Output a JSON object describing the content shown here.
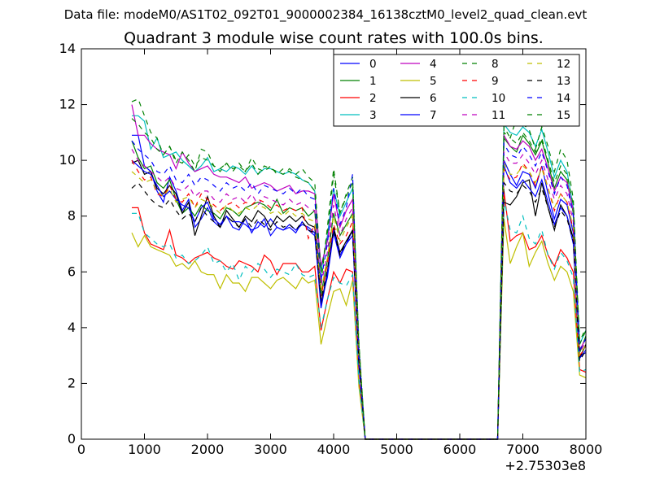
{
  "figure": {
    "suptitle": "Data file: modeM0/AS1T02_092T01_9000002384_16138cztM0_level2_quad_clean.evt",
    "x_offset_label": "+2.75303e8"
  },
  "chart_data": {
    "type": "line",
    "title": "Quadrant 3 module wise count rates with 100.0s bins.",
    "xlabel": "",
    "ylabel": "",
    "xlim": [
      0,
      8000
    ],
    "ylim": [
      0,
      14
    ],
    "x_offset": 275303000,
    "x_ticks": [
      0,
      1000,
      2000,
      3000,
      4000,
      5000,
      6000,
      7000,
      8000
    ],
    "y_ticks": [
      0,
      2,
      4,
      6,
      8,
      10,
      12,
      14
    ],
    "legend_position": "top-right",
    "legend_columns": 4,
    "grid": false,
    "x": [
      800,
      900,
      1000,
      1100,
      1200,
      1300,
      1400,
      1500,
      1600,
      1700,
      1800,
      1900,
      2000,
      2100,
      2200,
      2300,
      2400,
      2500,
      2600,
      2700,
      2800,
      2900,
      3000,
      3100,
      3200,
      3300,
      3400,
      3500,
      3600,
      3700,
      3800,
      3900,
      4000,
      4100,
      4200,
      4300,
      4400,
      4500,
      6600,
      6700,
      6800,
      6900,
      7000,
      7100,
      7200,
      7300,
      7400,
      7500,
      7600,
      7700,
      7800,
      7900,
      8000
    ],
    "series": [
      {
        "name": "0",
        "color": "#0000ff",
        "dash": "solid",
        "values": [
          10.9,
          10.9,
          9.8,
          9.6,
          8.9,
          8.5,
          9.4,
          8.9,
          8.2,
          8.6,
          7.6,
          7.9,
          8.3,
          7.8,
          7.6,
          8.0,
          7.6,
          7.5,
          7.9,
          7.4,
          7.8,
          7.6,
          7.9,
          7.6,
          7.5,
          7.6,
          7.4,
          7.8,
          7.5,
          7.3,
          4.9,
          5.8,
          7.4,
          6.5,
          7.0,
          7.5,
          2.7,
          0.0,
          0.0,
          10.0,
          9.5,
          9.1,
          9.6,
          9.5,
          9.0,
          9.8,
          8.8,
          7.9,
          8.6,
          8.4,
          7.4,
          3.0,
          3.1
        ]
      },
      {
        "name": "1",
        "color": "#008000",
        "dash": "solid",
        "values": [
          10.7,
          10.1,
          9.7,
          9.8,
          9.2,
          9.0,
          9.3,
          8.6,
          8.1,
          8.3,
          8.0,
          8.4,
          8.2,
          8.1,
          7.9,
          8.3,
          8.2,
          8.0,
          8.3,
          8.4,
          8.5,
          8.4,
          8.2,
          8.6,
          8.1,
          8.3,
          8.2,
          8.3,
          8.0,
          8.2,
          5.2,
          6.4,
          8.1,
          7.3,
          7.7,
          8.1,
          2.9,
          0.0,
          0.0,
          10.8,
          10.5,
          10.3,
          10.9,
          10.6,
          10.2,
          10.7,
          9.9,
          9.0,
          9.6,
          9.3,
          8.1,
          3.1,
          3.7
        ]
      },
      {
        "name": "2",
        "color": "#ff0000",
        "dash": "solid",
        "values": [
          8.3,
          8.3,
          7.4,
          7.0,
          6.9,
          6.8,
          7.5,
          6.6,
          6.5,
          6.3,
          6.5,
          6.6,
          6.7,
          6.5,
          6.4,
          6.2,
          6.1,
          6.4,
          6.3,
          6.2,
          6.0,
          6.6,
          6.4,
          5.9,
          6.3,
          6.3,
          6.3,
          6.0,
          6.0,
          6.2,
          3.9,
          5.0,
          6.0,
          5.6,
          6.1,
          6.0,
          2.1,
          0.0,
          0.0,
          8.9,
          7.1,
          7.3,
          7.4,
          6.8,
          6.9,
          7.3,
          6.6,
          6.2,
          6.8,
          6.5,
          6.0,
          2.5,
          2.4
        ]
      },
      {
        "name": "3",
        "color": "#00bfbf",
        "dash": "solid",
        "values": [
          11.6,
          11.6,
          11.4,
          10.4,
          10.8,
          10.1,
          10.2,
          10.3,
          10.0,
          9.8,
          9.6,
          9.8,
          10.1,
          9.6,
          9.7,
          9.6,
          9.8,
          9.7,
          9.5,
          9.8,
          9.5,
          9.7,
          9.7,
          9.6,
          9.5,
          9.6,
          9.5,
          9.3,
          9.2,
          8.9,
          6.0,
          7.3,
          9.0,
          8.0,
          8.5,
          9.0,
          3.2,
          0.0,
          0.0,
          11.3,
          11.0,
          10.9,
          11.2,
          11.0,
          10.5,
          11.1,
          10.3,
          9.4,
          10.0,
          9.6,
          8.3,
          3.4,
          3.9
        ]
      },
      {
        "name": "4",
        "color": "#bf00bf",
        "dash": "solid",
        "values": [
          12.0,
          10.9,
          10.9,
          10.6,
          10.4,
          10.3,
          10.2,
          9.7,
          10.3,
          9.9,
          9.6,
          9.7,
          9.8,
          9.5,
          9.4,
          9.4,
          9.3,
          9.2,
          9.4,
          9.0,
          9.1,
          9.2,
          9.1,
          8.9,
          9.0,
          9.1,
          8.8,
          8.9,
          8.9,
          8.8,
          6.2,
          7.1,
          8.8,
          7.6,
          8.2,
          8.6,
          3.0,
          0.0,
          0.0,
          10.9,
          10.5,
          10.4,
          10.7,
          10.5,
          10.0,
          10.4,
          9.7,
          8.9,
          9.4,
          9.2,
          8.2,
          3.2,
          3.6
        ]
      },
      {
        "name": "5",
        "color": "#bfbf00",
        "dash": "solid",
        "values": [
          7.4,
          6.9,
          7.3,
          6.9,
          6.8,
          6.7,
          6.6,
          6.2,
          6.3,
          6.1,
          6.4,
          6.0,
          5.9,
          5.9,
          5.4,
          5.9,
          5.6,
          5.6,
          5.3,
          5.8,
          5.8,
          5.6,
          5.4,
          5.7,
          5.8,
          5.6,
          5.4,
          5.8,
          5.6,
          5.7,
          3.4,
          4.4,
          5.3,
          5.4,
          4.8,
          5.7,
          1.9,
          0.0,
          0.0,
          7.9,
          6.3,
          6.9,
          7.4,
          6.2,
          6.7,
          7.1,
          6.3,
          5.7,
          6.2,
          6.0,
          5.3,
          2.3,
          2.2
        ]
      },
      {
        "name": "6",
        "color": "#000000",
        "dash": "solid",
        "values": [
          9.9,
          10.0,
          9.5,
          9.6,
          9.0,
          8.8,
          9.1,
          8.8,
          8.1,
          8.5,
          7.3,
          8.0,
          8.7,
          8.0,
          7.6,
          8.2,
          7.9,
          7.6,
          8.0,
          7.8,
          8.2,
          8.0,
          7.6,
          8.0,
          7.8,
          8.0,
          7.8,
          8.0,
          7.7,
          7.6,
          4.8,
          6.0,
          7.6,
          6.7,
          7.1,
          7.5,
          2.8,
          0.0,
          0.0,
          8.5,
          8.4,
          8.7,
          9.2,
          9.3,
          8.0,
          9.2,
          8.3,
          7.5,
          8.4,
          8.0,
          7.2,
          2.9,
          3.4
        ]
      },
      {
        "name": "7",
        "color": "#0000ff",
        "dash": "solid",
        "values": [
          10.0,
          9.8,
          9.6,
          9.5,
          9.1,
          8.7,
          8.9,
          8.6,
          8.4,
          8.3,
          7.8,
          8.3,
          8.5,
          7.9,
          7.7,
          8.0,
          7.8,
          7.8,
          7.7,
          7.5,
          7.6,
          7.9,
          7.3,
          7.6,
          7.5,
          7.7,
          7.5,
          7.7,
          7.6,
          7.4,
          4.7,
          5.9,
          7.5,
          6.6,
          7.0,
          7.3,
          2.7,
          0.0,
          0.0,
          9.8,
          9.2,
          9.0,
          9.3,
          9.0,
          8.7,
          9.3,
          8.5,
          7.7,
          8.3,
          8.0,
          7.0,
          2.9,
          3.2
        ]
      },
      {
        "name": "8",
        "color": "#008000",
        "dash": "dashed",
        "values": [
          12.1,
          12.2,
          11.6,
          11.0,
          10.8,
          10.2,
          10.5,
          9.9,
          10.3,
          10.0,
          9.6,
          10.4,
          10.3,
          9.8,
          9.7,
          9.9,
          9.6,
          9.9,
          9.6,
          10.1,
          9.7,
          9.6,
          9.8,
          9.5,
          9.7,
          9.6,
          9.4,
          9.3,
          9.2,
          8.9,
          5.6,
          7.6,
          9.7,
          8.1,
          8.8,
          9.4,
          3.5,
          0.0,
          0.0,
          11.0,
          10.8,
          11.5,
          11.3,
          11.1,
          10.4,
          11.2,
          10.5,
          9.6,
          10.4,
          10.0,
          8.6,
          3.5,
          4.0
        ]
      },
      {
        "name": "9",
        "color": "#ff0000",
        "dash": "dashed",
        "values": [
          10.0,
          9.6,
          9.3,
          9.4,
          8.8,
          8.7,
          9.1,
          8.6,
          8.5,
          8.8,
          8.3,
          8.8,
          8.6,
          8.4,
          8.2,
          8.4,
          8.5,
          8.3,
          8.5,
          8.4,
          8.6,
          8.5,
          8.3,
          8.4,
          8.2,
          8.3,
          8.2,
          8.3,
          7.2,
          7.7,
          5.1,
          6.3,
          7.7,
          7.0,
          7.3,
          7.8,
          3.0,
          0.0,
          0.0,
          9.7,
          9.3,
          9.4,
          9.9,
          9.6,
          9.1,
          9.8,
          9.0,
          8.2,
          8.8,
          8.5,
          7.5,
          3.0,
          3.3
        ]
      },
      {
        "name": "10",
        "color": "#00bfbf",
        "dash": "dashed",
        "values": [
          8.1,
          8.1,
          7.4,
          7.2,
          7.0,
          6.9,
          7.0,
          6.5,
          6.6,
          6.3,
          6.4,
          6.6,
          6.9,
          6.3,
          6.4,
          6.0,
          6.3,
          5.7,
          6.2,
          6.0,
          6.3,
          6.1,
          5.8,
          6.1,
          6.0,
          5.9,
          6.3,
          5.9,
          5.8,
          5.9,
          4.0,
          5.0,
          5.8,
          5.6,
          5.5,
          5.9,
          2.1,
          0.0,
          0.0,
          8.6,
          7.5,
          7.4,
          8.0,
          7.2,
          7.0,
          7.5,
          6.6,
          6.1,
          6.7,
          6.4,
          5.8,
          2.4,
          2.5
        ]
      },
      {
        "name": "11",
        "color": "#bf00bf",
        "dash": "dashed",
        "values": [
          10.4,
          10.0,
          9.8,
          9.6,
          9.4,
          9.2,
          9.4,
          9.0,
          8.9,
          9.1,
          8.7,
          8.9,
          8.9,
          8.6,
          8.5,
          8.8,
          8.6,
          8.7,
          8.5,
          8.8,
          8.4,
          8.7,
          8.6,
          8.5,
          8.4,
          8.6,
          8.4,
          8.5,
          8.3,
          8.2,
          5.5,
          6.7,
          8.4,
          7.3,
          7.9,
          8.3,
          3.1,
          0.0,
          0.0,
          10.3,
          9.9,
          9.9,
          10.2,
          9.9,
          9.5,
          10.0,
          9.3,
          8.6,
          9.1,
          8.8,
          7.8,
          3.1,
          3.5
        ]
      },
      {
        "name": "12",
        "color": "#bfbf00",
        "dash": "dashed",
        "values": [
          9.6,
          9.4,
          9.2,
          9.3,
          8.9,
          8.7,
          9.0,
          8.5,
          8.6,
          8.7,
          8.3,
          8.6,
          8.5,
          8.3,
          8.1,
          8.4,
          8.2,
          8.1,
          8.3,
          8.2,
          8.4,
          8.3,
          8.1,
          8.2,
          8.0,
          8.2,
          8.0,
          8.1,
          7.9,
          7.8,
          5.3,
          6.5,
          8.0,
          7.1,
          7.6,
          8.0,
          3.0,
          0.0,
          0.0,
          9.9,
          9.5,
          9.5,
          9.8,
          9.6,
          9.2,
          9.7,
          9.0,
          8.3,
          8.8,
          8.5,
          7.6,
          3.0,
          3.4
        ]
      },
      {
        "name": "13",
        "color": "#000000",
        "dash": "dashed",
        "values": [
          9.0,
          9.2,
          8.9,
          8.6,
          8.4,
          8.3,
          8.6,
          8.2,
          7.9,
          8.1,
          7.8,
          8.3,
          8.0,
          7.8,
          7.6,
          8.0,
          7.8,
          7.6,
          7.9,
          7.6,
          7.9,
          7.7,
          7.5,
          7.8,
          7.6,
          7.7,
          7.5,
          7.8,
          7.5,
          7.4,
          5.0,
          6.1,
          7.5,
          6.6,
          7.1,
          7.4,
          2.8,
          0.0,
          0.0,
          9.2,
          8.9,
          8.8,
          9.1,
          8.9,
          8.5,
          9.0,
          8.3,
          7.6,
          8.2,
          7.9,
          7.1,
          2.8,
          3.2
        ]
      },
      {
        "name": "14",
        "color": "#0000ff",
        "dash": "dashed",
        "values": [
          10.7,
          10.4,
          10.2,
          10.0,
          9.6,
          9.5,
          9.8,
          9.3,
          9.2,
          9.5,
          9.1,
          9.4,
          9.3,
          9.1,
          8.9,
          9.2,
          9.0,
          9.1,
          8.9,
          9.2,
          8.8,
          9.1,
          9.0,
          8.9,
          8.8,
          9.0,
          8.8,
          9.0,
          8.7,
          8.6,
          5.7,
          7.0,
          9.0,
          7.7,
          8.3,
          9.5,
          3.2,
          0.0,
          0.0,
          10.6,
          10.2,
          10.1,
          10.5,
          10.2,
          9.8,
          10.3,
          9.6,
          8.8,
          9.4,
          9.1,
          8.0,
          3.2,
          3.6
        ]
      },
      {
        "name": "15",
        "color": "#008000",
        "dash": "dashed",
        "values": [
          11.5,
          11.3,
          11.0,
          10.8,
          10.4,
          10.2,
          10.5,
          10.0,
          9.9,
          10.2,
          9.8,
          10.1,
          10.0,
          9.8,
          9.6,
          9.9,
          9.7,
          9.8,
          9.6,
          9.9,
          9.5,
          9.8,
          9.7,
          9.6,
          9.5,
          9.7,
          9.5,
          9.7,
          9.4,
          9.2,
          6.0,
          7.4,
          9.5,
          8.1,
          8.7,
          9.2,
          3.4,
          0.0,
          0.0,
          11.2,
          10.8,
          10.6,
          11.0,
          10.7,
          10.3,
          10.8,
          10.0,
          9.2,
          9.8,
          9.5,
          8.4,
          3.4,
          3.9
        ]
      }
    ]
  }
}
